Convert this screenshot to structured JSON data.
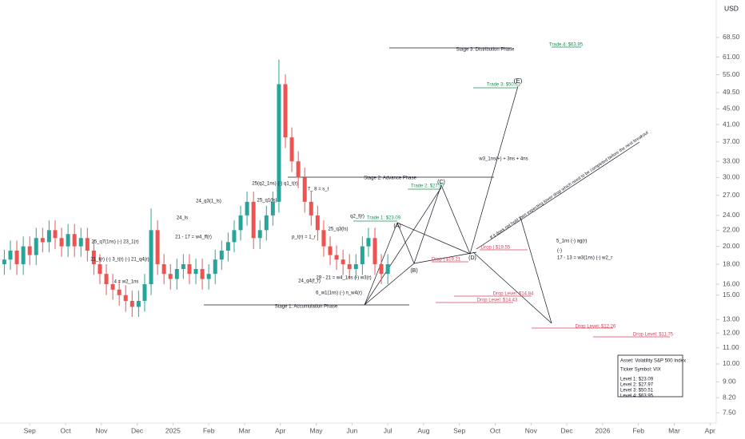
{
  "chart_data": {
    "type": "candlestick",
    "currency": "USD",
    "log_scale": true,
    "grid": false,
    "up_color": "#26a69a",
    "down_color": "#ef5350",
    "xlim": [
      -0.83,
      19.15
    ],
    "xticks": [
      {
        "value": 0,
        "label": "Sep"
      },
      {
        "value": 1,
        "label": "Oct"
      },
      {
        "value": 2,
        "label": "Nov"
      },
      {
        "value": 3,
        "label": "Dec"
      },
      {
        "value": 4,
        "label": "2025"
      },
      {
        "value": 5,
        "label": "Feb"
      },
      {
        "value": 6,
        "label": "Mar"
      },
      {
        "value": 7,
        "label": "Apr"
      },
      {
        "value": 8,
        "label": "May"
      },
      {
        "value": 9,
        "label": "Jun"
      },
      {
        "value": 10,
        "label": "Jul"
      },
      {
        "value": 11,
        "label": "Aug"
      },
      {
        "value": 12,
        "label": "Sep"
      },
      {
        "value": 13,
        "label": "Oct"
      },
      {
        "value": 14,
        "label": "Nov"
      },
      {
        "value": 15,
        "label": "Dec"
      },
      {
        "value": 16,
        "label": "2026"
      },
      {
        "value": 17,
        "label": "Feb"
      },
      {
        "value": 18,
        "label": "Mar"
      },
      {
        "value": 19,
        "label": "Apr"
      }
    ],
    "ylim": [
      7.06,
      85.4
    ],
    "yticks": [
      {
        "value": 68.5,
        "label": "68.50"
      },
      {
        "value": 61,
        "label": "61.00"
      },
      {
        "value": 55,
        "label": "55.00"
      },
      {
        "value": 49.5,
        "label": "49.50"
      },
      {
        "value": 45,
        "label": "45.00"
      },
      {
        "value": 41,
        "label": "41.00"
      },
      {
        "value": 37,
        "label": "37.00"
      },
      {
        "value": 33,
        "label": "33.00"
      },
      {
        "value": 30,
        "label": "30.00"
      },
      {
        "value": 27,
        "label": "27.00"
      },
      {
        "value": 24,
        "label": "24.00"
      },
      {
        "value": 22,
        "label": "22.00"
      },
      {
        "value": 20,
        "label": "20.00"
      },
      {
        "value": 18,
        "label": "18.00"
      },
      {
        "value": 16,
        "label": "16.00"
      },
      {
        "value": 15,
        "label": "15.00"
      },
      {
        "value": 13,
        "label": "13.00"
      },
      {
        "value": 12,
        "label": "12.00"
      },
      {
        "value": 11,
        "label": "11.00"
      },
      {
        "value": 10,
        "label": "10.00"
      },
      {
        "value": 9,
        "label": "9.00"
      },
      {
        "value": 8.2,
        "label": "8.20"
      },
      {
        "value": 7.5,
        "label": "7.50"
      }
    ],
    "x": [
      -0.71,
      -0.54,
      -0.36,
      -0.18,
      0,
      0.18,
      0.36,
      0.54,
      0.71,
      0.89,
      1.07,
      1.25,
      1.43,
      1.61,
      1.79,
      1.96,
      2.14,
      2.32,
      2.5,
      2.68,
      2.86,
      3.04,
      3.21,
      3.39,
      3.57,
      3.75,
      3.93,
      4.11,
      4.29,
      4.46,
      4.64,
      4.82,
      5,
      5.18,
      5.36,
      5.54,
      5.71,
      5.89,
      6.07,
      6.25,
      6.43,
      6.61,
      6.79,
      6.96,
      7.14,
      7.32,
      7.5,
      7.68,
      7.86,
      8.04,
      8.21,
      8.39,
      8.57,
      8.75,
      8.93,
      9.11,
      9.29,
      9.46,
      9.64,
      9.82,
      10
    ],
    "open": [
      18,
      18.5,
      19.5,
      18,
      20,
      19,
      21,
      20.5,
      22,
      21,
      20,
      21.5,
      20,
      21,
      19.5,
      18,
      17,
      16,
      15.5,
      15,
      14.5,
      14,
      14.5,
      16,
      22,
      18,
      17,
      16.5,
      17.5,
      18,
      17,
      17.5,
      16.5,
      17,
      18.5,
      19.5,
      20.5,
      22,
      24,
      26,
      21,
      22,
      24,
      26,
      52,
      38,
      33,
      30,
      26,
      24,
      22,
      20,
      19,
      18.5,
      18,
      17.5,
      18,
      20,
      21,
      18,
      17
    ],
    "high": [
      19.6,
      20.7,
      20.7,
      21.2,
      21.2,
      22.3,
      22.3,
      23.3,
      23.3,
      22.3,
      22.8,
      22.8,
      22.3,
      22.3,
      20.7,
      19.1,
      18,
      17,
      16.4,
      15.9,
      15.4,
      15.4,
      17,
      25,
      23.3,
      19.1,
      18,
      18.6,
      19.1,
      19.1,
      18.6,
      18.6,
      18,
      19.6,
      20.7,
      21.7,
      23.3,
      25.4,
      27.6,
      27.6,
      23.3,
      25.4,
      27.6,
      60.1,
      55.1,
      40.3,
      35,
      31.8,
      27.6,
      25.4,
      23.3,
      21.2,
      20.1,
      19.6,
      19.1,
      19.1,
      21.2,
      22.3,
      22.3,
      19.1,
      19.1
    ],
    "low": [
      16.9,
      17.4,
      16.9,
      16.9,
      17.9,
      17.9,
      19.3,
      19.3,
      19.7,
      18.8,
      18.8,
      18.8,
      18.8,
      18.3,
      16.9,
      16,
      15,
      14.6,
      14.1,
      13.6,
      13.2,
      13.2,
      13.6,
      15,
      16.9,
      16,
      15.5,
      15.5,
      16.5,
      16,
      16,
      15.5,
      15.5,
      16,
      17.4,
      18.3,
      19.3,
      20.7,
      22.6,
      19.7,
      19.7,
      20.7,
      22.6,
      24.4,
      35.7,
      31,
      28.2,
      24.4,
      22.6,
      20.7,
      18.8,
      17.9,
      17.4,
      16.9,
      16.5,
      16.5,
      16.9,
      18.8,
      16.9,
      16,
      16
    ],
    "close": [
      18.5,
      19.5,
      18,
      20,
      19,
      21,
      20.5,
      22,
      21,
      20,
      21.5,
      20,
      21,
      19.5,
      18,
      17,
      16,
      15.5,
      15,
      14.5,
      14,
      14.5,
      16,
      22,
      18,
      17,
      16.5,
      17.5,
      18,
      17,
      17.5,
      16.5,
      17,
      18.5,
      19.5,
      20.5,
      22,
      24,
      26,
      21,
      22,
      24,
      26,
      52,
      38,
      33,
      30,
      26,
      24,
      22,
      20,
      19,
      18.5,
      18,
      17.5,
      18,
      20,
      21,
      18,
      17,
      18
    ],
    "labels": [
      "Stage 3: Distribution Phase",
      "Stage 2: Advance Phase",
      "Stage 1: Accumulation Phase",
      "(E)",
      "(C)",
      "(A)",
      "(B)",
      "(D)",
      "w3_1ns(+) + 3ns + 4ns",
      "If it does not hold then expecting lower drop which need to be completed before the next breakout",
      "5_1ns (-) ag(r)",
      "(-)",
      "17 - 13 = w3(1ns) (-) w2_r",
      "24_ls",
      "24_q3(1_ls)",
      "25_q1(ls)",
      "25(q2_1ns) (-) q1_t(r)",
      "7_ 8 = s_t",
      "q2_f(r)",
      "25_q3(ls)",
      "p_t(r) = 1_r",
      "24_q4(f_r)",
      "29 - 21 = w4_1ns (-) w3(r)",
      "6_w1(1ns) (-) n_w4(r)",
      "21 - 17 = w4_ff(r)",
      "4 = w2_1ns",
      "25_q7(1ns) (-) 23_1(r)",
      "21_t(r) (-) 3_t(r) (-) 21_q4(r)"
    ],
    "trade_levels": [
      "Trade 4: $63.95",
      "Trade 3: $50.51",
      "Trade 2: $27.97",
      "Trade 1: $23.09"
    ],
    "drop_levels": [
      "Drop | $19.55",
      "Drop | $19.21",
      "Drop Level: $14.84",
      "Drop Level: $14.43",
      "Drop Level: $12.26",
      "Drop Level: $11.75"
    ],
    "info_box": [
      "Asset: Volatility S&P 500 Index",
      "Ticker Symbol: VIX",
      "Level 1: $23.09",
      "Level 2: $27.97",
      "Level 3: $50.51",
      "Level 4: $63.95"
    ]
  }
}
